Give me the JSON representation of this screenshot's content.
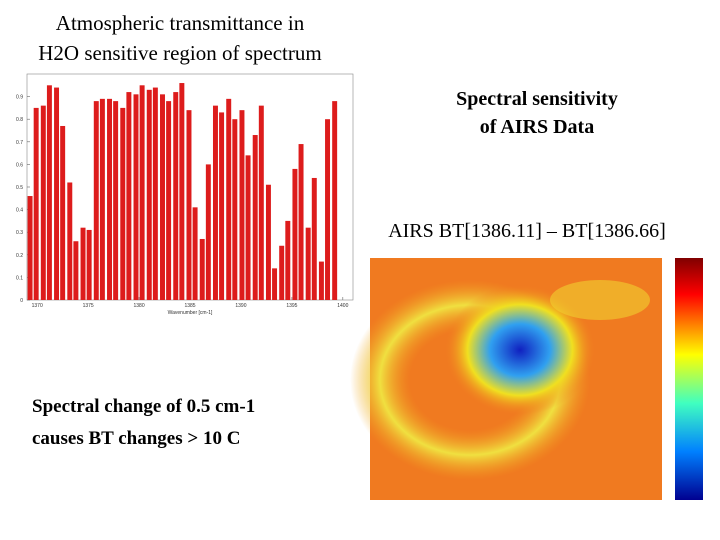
{
  "slide": {
    "title": [
      "Atmospheric transmittance in",
      "H2O sensitive region of spectrum"
    ],
    "right_heading": [
      "Spectral sensitivity",
      "of AIRS Data"
    ],
    "image_caption": "AIRS BT[1386.11] – BT[1386.66]",
    "note": [
      "Spectral change of 0.5 cm-1",
      "causes BT changes > 10 C"
    ]
  },
  "chart_data": {
    "type": "bar",
    "color": "#dd1c1c",
    "x_label": "Wavenumber [cm-1]",
    "x": [
      1369.3,
      1369.9,
      1370.6,
      1371.2,
      1371.9,
      1372.5,
      1373.2,
      1373.8,
      1374.5,
      1375.1,
      1375.8,
      1376.4,
      1377.1,
      1377.7,
      1378.4,
      1379.0,
      1379.7,
      1380.3,
      1381.0,
      1381.6,
      1382.3,
      1382.9,
      1383.6,
      1384.2,
      1384.9,
      1385.5,
      1386.2,
      1386.8,
      1387.5,
      1388.1,
      1388.8,
      1389.4,
      1390.1,
      1390.7,
      1391.4,
      1392.0,
      1392.7,
      1393.3,
      1394.0,
      1394.6,
      1395.3,
      1395.9,
      1396.6,
      1397.2,
      1397.9,
      1398.5,
      1399.2
    ],
    "values": [
      0.46,
      0.85,
      0.86,
      0.95,
      0.94,
      0.77,
      0.52,
      0.26,
      0.32,
      0.31,
      0.88,
      0.89,
      0.89,
      0.88,
      0.85,
      0.92,
      0.91,
      0.95,
      0.93,
      0.94,
      0.91,
      0.88,
      0.92,
      0.96,
      0.84,
      0.41,
      0.27,
      0.6,
      0.86,
      0.83,
      0.89,
      0.8,
      0.84,
      0.64,
      0.73,
      0.86,
      0.51,
      0.14,
      0.24,
      0.35,
      0.58,
      0.69,
      0.32,
      0.54,
      0.17,
      0.8,
      0.88
    ],
    "xlim": [
      1369,
      1401
    ],
    "xticks": [
      1370,
      1375,
      1380,
      1385,
      1390,
      1395,
      1400
    ],
    "ylim": [
      0,
      1
    ],
    "yticks": [
      0,
      0.1,
      0.2,
      0.3,
      0.4,
      0.5,
      0.6,
      0.7,
      0.8,
      0.9
    ]
  }
}
